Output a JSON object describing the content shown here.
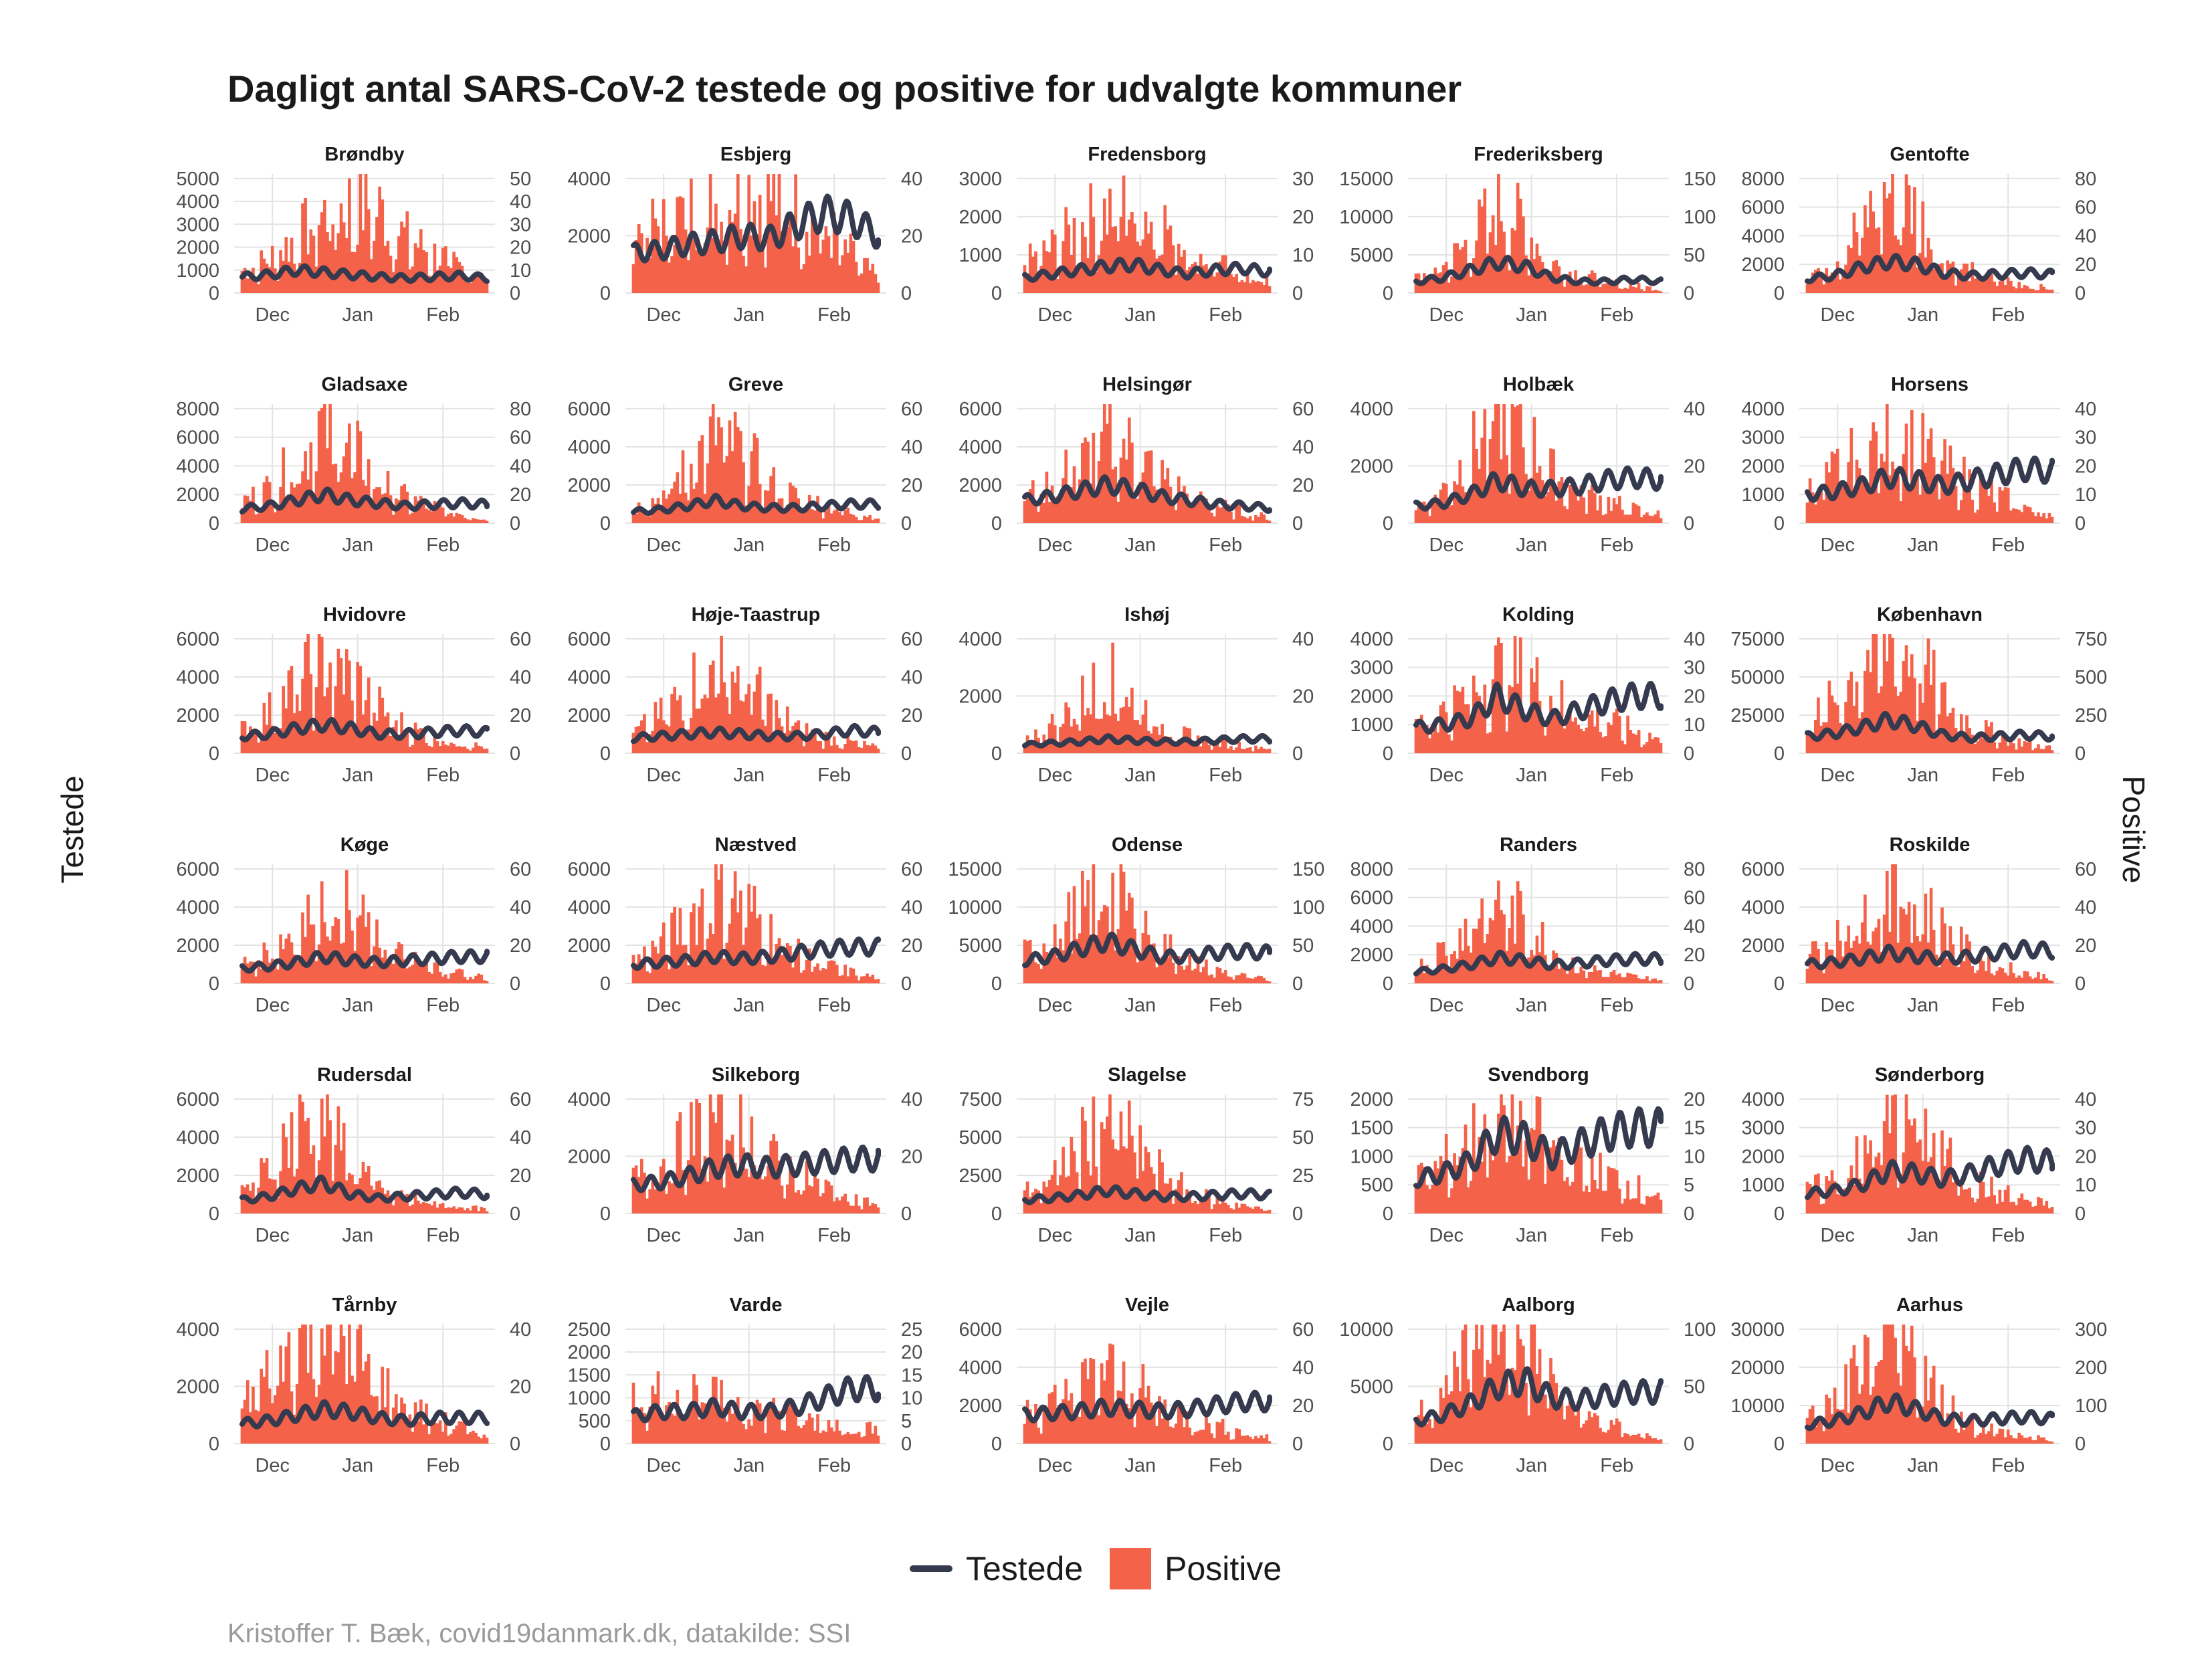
{
  "title": "Dagligt antal SARS-CoV-2 testede og positive for udvalgte kommuner",
  "y_left_label": "Testede",
  "y_right_label": "Positive",
  "caption": "Kristoffer T. Bæk, covid19danmark.dk, datakilde: SSI",
  "legend": {
    "line_label": "Testede",
    "bar_label": "Positive"
  },
  "colors": {
    "line": "#353a4f",
    "bar": "#f4624a",
    "grid": "#e3e3e3",
    "text": "#1a1a1a",
    "axis_text": "#4d4d4d",
    "caption": "#9a9a9a"
  },
  "x_tick_labels": [
    "Dec",
    "Jan",
    "Feb"
  ],
  "chart_data": [
    {
      "type": "bar+line",
      "panel": "Brøndby",
      "left_ticks": [
        0,
        1000,
        2000,
        3000,
        4000,
        5000
      ],
      "right_ticks": [
        0,
        10,
        20,
        30,
        40,
        50
      ],
      "testede_level": [
        700,
        800,
        1000,
        900,
        800,
        700,
        650,
        700,
        750,
        650
      ],
      "positive_level": [
        10,
        15,
        25,
        35,
        40,
        38,
        25,
        18,
        12,
        6
      ]
    },
    {
      "type": "bar+line",
      "panel": "Esbjerg",
      "left_ticks": [
        0,
        2000,
        4000
      ],
      "right_ticks": [
        0,
        20,
        40
      ],
      "testede_level": [
        1400,
        1500,
        1700,
        1800,
        2000,
        1900,
        2400,
        2800,
        2600,
        2000
      ],
      "positive_level": [
        22,
        25,
        30,
        32,
        38,
        35,
        30,
        24,
        14,
        5
      ]
    },
    {
      "type": "bar+line",
      "panel": "Fredensborg",
      "left_ticks": [
        0,
        1000,
        2000,
        3000
      ],
      "right_ticks": [
        0,
        10,
        20,
        30
      ],
      "testede_level": [
        400,
        500,
        600,
        700,
        750,
        600,
        500,
        600,
        650,
        550
      ],
      "positive_level": [
        8,
        12,
        18,
        22,
        24,
        20,
        12,
        8,
        5,
        3
      ]
    },
    {
      "type": "bar+line",
      "panel": "Frederiksberg",
      "left_ticks": [
        0,
        5000,
        10000,
        15000
      ],
      "right_ticks": [
        0,
        50,
        100,
        150
      ],
      "testede_level": [
        1500,
        2000,
        3000,
        4000,
        3500,
        2000,
        1500,
        1500,
        1800,
        1500
      ],
      "positive_level": [
        20,
        35,
        70,
        120,
        90,
        40,
        25,
        15,
        10,
        5
      ]
    },
    {
      "type": "bar+line",
      "panel": "Gentofte",
      "left_ticks": [
        0,
        2000,
        4000,
        6000,
        8000
      ],
      "right_ticks": [
        0,
        20,
        40,
        60,
        80
      ],
      "testede_level": [
        1000,
        1200,
        1800,
        2200,
        2000,
        1400,
        1200,
        1300,
        1400,
        1300
      ],
      "positive_level": [
        12,
        25,
        50,
        75,
        60,
        25,
        15,
        10,
        6,
        3
      ]
    },
    {
      "type": "bar+line",
      "panel": "Gladsaxe",
      "left_ticks": [
        0,
        2000,
        4000,
        6000,
        8000
      ],
      "right_ticks": [
        0,
        20,
        40,
        60,
        80
      ],
      "testede_level": [
        1000,
        1200,
        1600,
        2000,
        1600,
        1400,
        1200,
        1300,
        1400,
        1300
      ],
      "positive_level": [
        15,
        25,
        45,
        70,
        55,
        30,
        18,
        12,
        7,
        3
      ]
    },
    {
      "type": "bar+line",
      "panel": "Greve",
      "left_ticks": [
        0,
        2000,
        4000,
        6000
      ],
      "right_ticks": [
        0,
        20,
        40,
        60
      ],
      "testede_level": [
        600,
        700,
        900,
        1200,
        900,
        800,
        800,
        900,
        1000,
        1000
      ],
      "positive_level": [
        8,
        14,
        30,
        50,
        40,
        22,
        14,
        10,
        6,
        3
      ]
    },
    {
      "type": "bar+line",
      "panel": "Helsingør",
      "left_ticks": [
        0,
        2000,
        4000,
        6000
      ],
      "right_ticks": [
        0,
        20,
        40,
        60
      ],
      "testede_level": [
        1200,
        1400,
        1700,
        2000,
        1800,
        1400,
        1200,
        1000,
        900,
        800
      ],
      "positive_level": [
        14,
        22,
        32,
        45,
        40,
        25,
        15,
        10,
        6,
        3
      ]
    },
    {
      "type": "bar+line",
      "panel": "Holbæk",
      "left_ticks": [
        0,
        2000,
        4000
      ],
      "right_ticks": [
        0,
        20,
        40
      ],
      "testede_level": [
        600,
        700,
        1000,
        1500,
        1200,
        1200,
        1300,
        1500,
        1600,
        1500
      ],
      "positive_level": [
        6,
        12,
        25,
        40,
        32,
        18,
        12,
        8,
        5,
        3
      ]
    },
    {
      "type": "bar+line",
      "panel": "Horsens",
      "left_ticks": [
        0,
        1000,
        2000,
        3000,
        4000
      ],
      "right_ticks": [
        0,
        10,
        20,
        30,
        40
      ],
      "testede_level": [
        1000,
        1100,
        1300,
        1600,
        1500,
        1300,
        1500,
        1700,
        1900,
        1800
      ],
      "positive_level": [
        12,
        18,
        25,
        32,
        28,
        20,
        15,
        10,
        6,
        3
      ]
    },
    {
      "type": "bar+line",
      "panel": "Hvidovre",
      "left_ticks": [
        0,
        2000,
        4000,
        6000
      ],
      "right_ticks": [
        0,
        20,
        40,
        60
      ],
      "testede_level": [
        900,
        1000,
        1300,
        1500,
        1300,
        1000,
        1000,
        1100,
        1200,
        1100
      ],
      "positive_level": [
        12,
        22,
        38,
        50,
        42,
        25,
        14,
        9,
        6,
        3
      ]
    },
    {
      "type": "bar+line",
      "panel": "Høje-Taastrup",
      "left_ticks": [
        0,
        2000,
        4000,
        6000
      ],
      "right_ticks": [
        0,
        20,
        40,
        60
      ],
      "testede_level": [
        800,
        900,
        1000,
        1100,
        1000,
        900,
        900,
        1000,
        1200,
        1100
      ],
      "positive_level": [
        10,
        20,
        35,
        50,
        42,
        25,
        14,
        9,
        6,
        3
      ]
    },
    {
      "type": "bar+line",
      "panel": "Ishøj",
      "left_ticks": [
        0,
        2000,
        4000
      ],
      "right_ticks": [
        0,
        20,
        40
      ],
      "testede_level": [
        300,
        350,
        400,
        500,
        450,
        400,
        400,
        450,
        500,
        500
      ],
      "positive_level": [
        5,
        10,
        18,
        28,
        20,
        10,
        6,
        4,
        3,
        2
      ]
    },
    {
      "type": "bar+line",
      "panel": "Kolding",
      "left_ticks": [
        0,
        1000,
        2000,
        3000,
        4000
      ],
      "right_ticks": [
        0,
        10,
        20,
        30,
        40
      ],
      "testede_level": [
        900,
        1000,
        1200,
        2000,
        1500,
        1200,
        1500,
        1800,
        2000,
        2000
      ],
      "positive_level": [
        10,
        15,
        22,
        30,
        28,
        20,
        15,
        12,
        8,
        5
      ]
    },
    {
      "type": "bar+line",
      "panel": "København",
      "left_ticks": [
        0,
        25000,
        50000,
        75000
      ],
      "right_ticks": [
        0,
        250,
        500,
        750
      ],
      "testede_level": [
        11000,
        13000,
        17000,
        22000,
        18000,
        12000,
        10000,
        11000,
        12000,
        11000
      ],
      "positive_level": [
        200,
        350,
        600,
        800,
        650,
        350,
        200,
        120,
        70,
        35
      ]
    },
    {
      "type": "bar+line",
      "panel": "Køge",
      "left_ticks": [
        0,
        2000,
        4000,
        6000
      ],
      "right_ticks": [
        0,
        20,
        40,
        60
      ],
      "testede_level": [
        800,
        900,
        1100,
        1400,
        1200,
        1100,
        1200,
        1300,
        1400,
        1400
      ],
      "positive_level": [
        10,
        18,
        30,
        45,
        40,
        22,
        14,
        9,
        6,
        3
      ]
    },
    {
      "type": "bar+line",
      "panel": "Næstved",
      "left_ticks": [
        0,
        2000,
        4000,
        6000
      ],
      "right_ticks": [
        0,
        20,
        40,
        60
      ],
      "testede_level": [
        1000,
        1100,
        1200,
        1400,
        1300,
        1400,
        1600,
        1800,
        1900,
        1900
      ],
      "positive_level": [
        12,
        20,
        35,
        50,
        45,
        28,
        16,
        10,
        6,
        3
      ]
    },
    {
      "type": "bar+line",
      "panel": "Odense",
      "left_ticks": [
        0,
        5000,
        10000,
        15000
      ],
      "right_ticks": [
        0,
        50,
        100,
        150
      ],
      "testede_level": [
        3000,
        3500,
        4500,
        5500,
        4500,
        3500,
        3500,
        4000,
        4200,
        4000
      ],
      "positive_level": [
        40,
        65,
        95,
        130,
        100,
        55,
        30,
        18,
        10,
        5
      ]
    },
    {
      "type": "bar+line",
      "panel": "Randers",
      "left_ticks": [
        0,
        2000,
        4000,
        6000,
        8000
      ],
      "right_ticks": [
        0,
        20,
        40,
        60,
        80
      ],
      "testede_level": [
        800,
        1000,
        1300,
        1800,
        1600,
        1300,
        1400,
        1600,
        1700,
        1700
      ],
      "positive_level": [
        10,
        25,
        45,
        60,
        45,
        25,
        12,
        8,
        5,
        3
      ]
    },
    {
      "type": "bar+line",
      "panel": "Roskilde",
      "left_ticks": [
        0,
        2000,
        4000,
        6000
      ],
      "right_ticks": [
        0,
        20,
        40,
        60
      ],
      "testede_level": [
        1000,
        1100,
        1300,
        1600,
        1400,
        1300,
        1400,
        1600,
        1800,
        1700
      ],
      "positive_level": [
        15,
        25,
        40,
        55,
        45,
        28,
        16,
        10,
        6,
        3
      ]
    },
    {
      "type": "bar+line",
      "panel": "Rudersdal",
      "left_ticks": [
        0,
        2000,
        4000,
        6000
      ],
      "right_ticks": [
        0,
        20,
        40,
        60
      ],
      "testede_level": [
        700,
        900,
        1300,
        1600,
        1000,
        800,
        900,
        1000,
        1100,
        1000
      ],
      "positive_level": [
        10,
        25,
        48,
        55,
        30,
        14,
        9,
        6,
        4,
        2
      ]
    },
    {
      "type": "bar+line",
      "panel": "Silkeborg",
      "left_ticks": [
        0,
        2000,
        4000
      ],
      "right_ticks": [
        0,
        20,
        40
      ],
      "testede_level": [
        1000,
        1100,
        1300,
        1600,
        1700,
        1600,
        1700,
        1800,
        1900,
        1900
      ],
      "positive_level": [
        12,
        18,
        26,
        35,
        30,
        20,
        14,
        10,
        6,
        3
      ]
    },
    {
      "type": "bar+line",
      "panel": "Slagelse",
      "left_ticks": [
        0,
        2500,
        5000,
        7500
      ],
      "right_ticks": [
        0,
        25,
        50,
        75
      ],
      "testede_level": [
        900,
        1000,
        1200,
        1500,
        1300,
        1100,
        1100,
        1200,
        1300,
        1200
      ],
      "positive_level": [
        14,
        25,
        45,
        65,
        50,
        28,
        15,
        9,
        6,
        3
      ]
    },
    {
      "type": "bar+line",
      "panel": "Svendborg",
      "left_ticks": [
        0,
        500,
        1000,
        1500,
        2000
      ],
      "right_ticks": [
        0,
        5,
        10,
        15,
        20
      ],
      "testede_level": [
        600,
        700,
        900,
        1400,
        1300,
        1000,
        1200,
        1400,
        1500,
        1500
      ],
      "positive_level": [
        6,
        9,
        13,
        18,
        16,
        12,
        9,
        7,
        5,
        3
      ]
    },
    {
      "type": "bar+line",
      "panel": "Sønderborg",
      "left_ticks": [
        0,
        1000,
        2000,
        3000,
        4000
      ],
      "right_ticks": [
        0,
        10,
        20,
        30,
        40
      ],
      "testede_level": [
        700,
        800,
        1000,
        1500,
        1400,
        1200,
        1400,
        1700,
        1900,
        1800
      ],
      "positive_level": [
        8,
        12,
        20,
        32,
        34,
        20,
        12,
        8,
        5,
        3
      ]
    },
    {
      "type": "bar+line",
      "panel": "Tårnby",
      "left_ticks": [
        0,
        2000,
        4000
      ],
      "right_ticks": [
        0,
        20,
        40
      ],
      "testede_level": [
        700,
        800,
        1000,
        1200,
        1100,
        900,
        800,
        900,
        900,
        900
      ],
      "positive_level": [
        14,
        25,
        38,
        45,
        38,
        22,
        14,
        9,
        6,
        3
      ]
    },
    {
      "type": "bar+line",
      "panel": "Varde",
      "left_ticks": [
        0,
        500,
        1000,
        1500,
        2000,
        2500
      ],
      "right_ticks": [
        0,
        5,
        10,
        15,
        20,
        25
      ],
      "testede_level": [
        600,
        700,
        700,
        800,
        700,
        700,
        800,
        1000,
        1200,
        1200
      ],
      "positive_level": [
        10,
        12,
        12,
        10,
        9,
        8,
        6,
        5,
        4,
        3
      ]
    },
    {
      "type": "bar+line",
      "panel": "Vejle",
      "left_ticks": [
        0,
        2000,
        4000,
        6000
      ],
      "right_ticks": [
        0,
        20,
        40,
        60
      ],
      "testede_level": [
        1500,
        1600,
        1700,
        1900,
        1800,
        1700,
        1800,
        2000,
        2200,
        2200
      ],
      "positive_level": [
        16,
        22,
        30,
        40,
        32,
        20,
        14,
        10,
        6,
        3
      ]
    },
    {
      "type": "bar+line",
      "panel": "Aalborg",
      "left_ticks": [
        0,
        5000,
        10000
      ],
      "right_ticks": [
        0,
        50,
        100
      ],
      "testede_level": [
        2000,
        2500,
        3500,
        5000,
        5500,
        4000,
        3800,
        4200,
        4500,
        4500
      ],
      "positive_level": [
        25,
        50,
        90,
        120,
        90,
        55,
        30,
        18,
        10,
        5
      ]
    },
    {
      "type": "bar+line",
      "panel": "Aarhus",
      "left_ticks": [
        0,
        10000,
        20000,
        30000
      ],
      "right_ticks": [
        0,
        100,
        200,
        300
      ],
      "testede_level": [
        5000,
        6000,
        8000,
        11000,
        9000,
        6500,
        6000,
        6500,
        7000,
        6500
      ],
      "positive_level": [
        60,
        110,
        200,
        300,
        230,
        110,
        60,
        35,
        20,
        10
      ]
    }
  ]
}
